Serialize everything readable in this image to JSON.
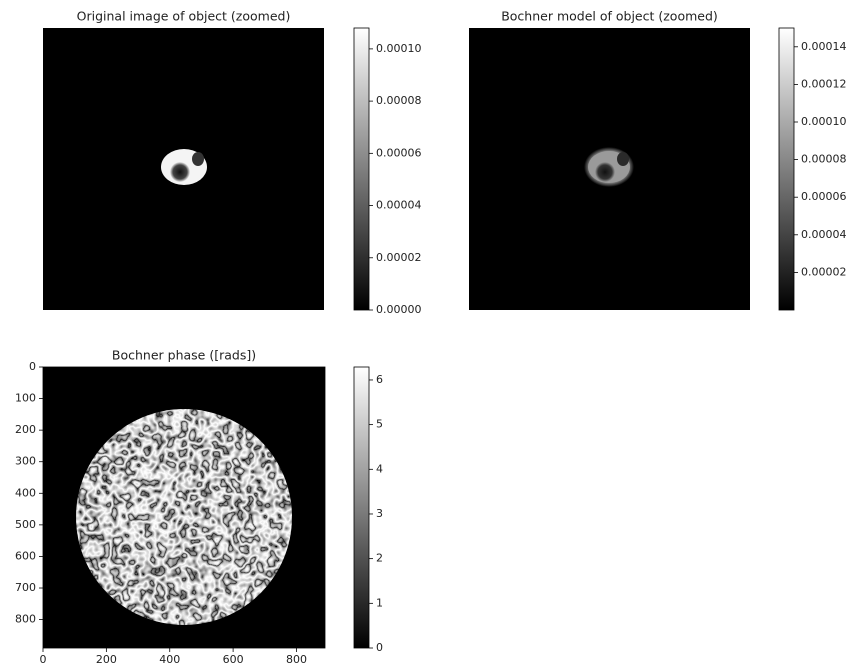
{
  "chart_data": [
    {
      "type": "image",
      "title": "Original image of object (zoomed)",
      "colormap": "gray",
      "clim": [
        0,
        0.000108
      ],
      "cticks": [
        {
          "value": 0,
          "label": "0.00000"
        },
        {
          "value": 2e-05,
          "label": "0.00002"
        },
        {
          "value": 4e-05,
          "label": "0.00004"
        },
        {
          "value": 6e-05,
          "label": "0.00006"
        },
        {
          "value": 8e-05,
          "label": "0.00008"
        },
        {
          "value": 0.0001,
          "label": "0.00010"
        }
      ]
    },
    {
      "type": "image",
      "title": "Bochner model of object (zoomed)",
      "colormap": "gray",
      "clim": [
        0,
        0.00015
      ],
      "cticks": [
        {
          "value": 2e-05,
          "label": "0.00002"
        },
        {
          "value": 4e-05,
          "label": "0.00004"
        },
        {
          "value": 6e-05,
          "label": "0.00006"
        },
        {
          "value": 8e-05,
          "label": "0.00008"
        },
        {
          "value": 0.0001,
          "label": "0.00010"
        },
        {
          "value": 0.00012,
          "label": "0.00012"
        },
        {
          "value": 0.00014,
          "label": "0.00014"
        }
      ]
    },
    {
      "type": "image",
      "title": "Bochner phase ([rads])",
      "colormap": "gray",
      "clim": [
        0,
        6.29
      ],
      "cticks": [
        0,
        1,
        2,
        3,
        4,
        5,
        6
      ],
      "xlim": [
        0,
        890
      ],
      "xticks": [
        0,
        200,
        400,
        600,
        800
      ],
      "ylim": [
        890,
        0
      ],
      "yticks": [
        0,
        100,
        200,
        300,
        400,
        500,
        600,
        700,
        800
      ]
    }
  ]
}
